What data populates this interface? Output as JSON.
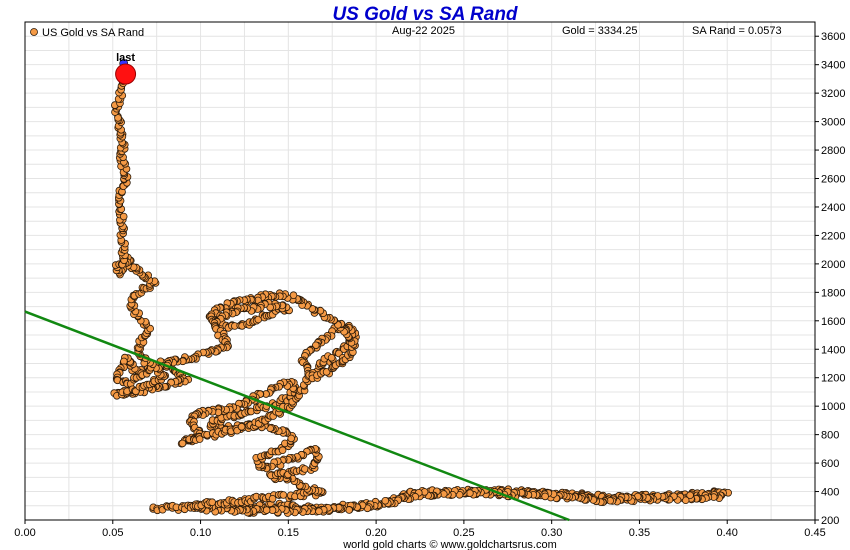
{
  "header": {
    "title": "US Gold vs SA Rand",
    "date": "Aug-22  2025",
    "gold_readout": "Gold = 3334.25",
    "rand_readout": "SA Rand = 0.0573"
  },
  "legend": {
    "label": "US Gold vs SA Rand",
    "position": "top-left"
  },
  "footer": {
    "credit": "world gold charts © www.goldchartsrus.com"
  },
  "colors": {
    "title": "#0000cc",
    "dots": "#f59a45",
    "dot_outline": "#2a1a0a",
    "trend": "#118811",
    "last": "#ff1111",
    "prev": "#3333ff"
  },
  "chart_data": {
    "type": "scatter",
    "title": "US Gold vs SA Rand",
    "xlabel": "",
    "ylabel": "",
    "xlim": [
      0.0,
      0.45
    ],
    "ylim": [
      200,
      3700
    ],
    "x_ticks": [
      "0.00",
      "0.05",
      "0.10",
      "0.15",
      "0.20",
      "0.25",
      "0.30",
      "0.35",
      "0.40",
      "0.45"
    ],
    "x_tick_values": [
      0.0,
      0.05,
      0.1,
      0.15,
      0.2,
      0.25,
      0.3,
      0.35,
      0.4,
      0.45
    ],
    "y_ticks": [
      "200",
      "400",
      "600",
      "800",
      "1000",
      "1200",
      "1400",
      "1600",
      "1800",
      "2000",
      "2200",
      "2400",
      "2600",
      "2800",
      "3000",
      "3200",
      "3400",
      "3600"
    ],
    "y_tick_values": [
      200,
      400,
      600,
      800,
      1000,
      1200,
      1400,
      1600,
      1800,
      2000,
      2200,
      2400,
      2600,
      2800,
      3000,
      3200,
      3400,
      3600
    ],
    "y_axis_side": "right",
    "grid": true,
    "series": [
      {
        "name": "US Gold vs SA Rand",
        "path": [
          [
            0.073,
            280
          ],
          [
            0.085,
            285
          ],
          [
            0.1,
            300
          ],
          [
            0.115,
            305
          ],
          [
            0.13,
            290
          ],
          [
            0.145,
            300
          ],
          [
            0.16,
            280
          ],
          [
            0.175,
            290
          ],
          [
            0.19,
            300
          ],
          [
            0.205,
            310
          ],
          [
            0.215,
            360
          ],
          [
            0.22,
            390
          ],
          [
            0.235,
            400
          ],
          [
            0.25,
            400
          ],
          [
            0.265,
            395
          ],
          [
            0.275,
            400
          ],
          [
            0.29,
            390
          ],
          [
            0.305,
            385
          ],
          [
            0.32,
            370
          ],
          [
            0.335,
            355
          ],
          [
            0.35,
            360
          ],
          [
            0.365,
            365
          ],
          [
            0.38,
            375
          ],
          [
            0.39,
            390
          ],
          [
            0.4,
            380
          ],
          [
            0.39,
            360
          ],
          [
            0.37,
            355
          ],
          [
            0.355,
            350
          ],
          [
            0.34,
            345
          ],
          [
            0.325,
            340
          ],
          [
            0.31,
            360
          ],
          [
            0.295,
            375
          ],
          [
            0.28,
            380
          ],
          [
            0.26,
            395
          ],
          [
            0.245,
            390
          ],
          [
            0.225,
            380
          ],
          [
            0.21,
            330
          ],
          [
            0.195,
            300
          ],
          [
            0.18,
            275
          ],
          [
            0.165,
            270
          ],
          [
            0.15,
            260
          ],
          [
            0.135,
            262
          ],
          [
            0.12,
            265
          ],
          [
            0.105,
            275
          ],
          [
            0.095,
            300
          ],
          [
            0.11,
            320
          ],
          [
            0.125,
            335
          ],
          [
            0.14,
            360
          ],
          [
            0.155,
            375
          ],
          [
            0.17,
            390
          ],
          [
            0.16,
            430
          ],
          [
            0.15,
            480
          ],
          [
            0.14,
            510
          ],
          [
            0.152,
            540
          ],
          [
            0.163,
            560
          ],
          [
            0.167,
            620
          ],
          [
            0.165,
            700
          ],
          [
            0.155,
            640
          ],
          [
            0.145,
            600
          ],
          [
            0.135,
            570
          ],
          [
            0.132,
            620
          ],
          [
            0.14,
            660
          ],
          [
            0.148,
            700
          ],
          [
            0.152,
            770
          ],
          [
            0.148,
            820
          ],
          [
            0.14,
            850
          ],
          [
            0.13,
            870
          ],
          [
            0.12,
            850
          ],
          [
            0.11,
            840
          ],
          [
            0.105,
            870
          ],
          [
            0.112,
            910
          ],
          [
            0.122,
            950
          ],
          [
            0.132,
            985
          ],
          [
            0.142,
            1010
          ],
          [
            0.15,
            1060
          ],
          [
            0.155,
            1120
          ],
          [
            0.152,
            1160
          ],
          [
            0.145,
            1150
          ],
          [
            0.137,
            1100
          ],
          [
            0.128,
            1030
          ],
          [
            0.118,
            990
          ],
          [
            0.108,
            960
          ],
          [
            0.098,
            950
          ],
          [
            0.093,
            900
          ],
          [
            0.098,
            850
          ],
          [
            0.1,
            800
          ],
          [
            0.095,
            760
          ],
          [
            0.09,
            740
          ],
          [
            0.096,
            770
          ],
          [
            0.108,
            800
          ],
          [
            0.12,
            830
          ],
          [
            0.133,
            880
          ],
          [
            0.143,
            950
          ],
          [
            0.152,
            1020
          ],
          [
            0.158,
            1120
          ],
          [
            0.163,
            1220
          ],
          [
            0.17,
            1300
          ],
          [
            0.178,
            1380
          ],
          [
            0.185,
            1430
          ],
          [
            0.188,
            1500
          ],
          [
            0.185,
            1560
          ],
          [
            0.178,
            1540
          ],
          [
            0.17,
            1470
          ],
          [
            0.163,
            1400
          ],
          [
            0.158,
            1330
          ],
          [
            0.16,
            1260
          ],
          [
            0.165,
            1210
          ],
          [
            0.172,
            1240
          ],
          [
            0.178,
            1290
          ],
          [
            0.184,
            1350
          ],
          [
            0.188,
            1420
          ],
          [
            0.185,
            1500
          ],
          [
            0.178,
            1580
          ],
          [
            0.17,
            1640
          ],
          [
            0.162,
            1700
          ],
          [
            0.155,
            1760
          ],
          [
            0.145,
            1780
          ],
          [
            0.135,
            1770
          ],
          [
            0.125,
            1740
          ],
          [
            0.115,
            1710
          ],
          [
            0.108,
            1680
          ],
          [
            0.105,
            1620
          ],
          [
            0.11,
            1580
          ],
          [
            0.118,
            1560
          ],
          [
            0.126,
            1580
          ],
          [
            0.134,
            1620
          ],
          [
            0.142,
            1660
          ],
          [
            0.15,
            1690
          ],
          [
            0.14,
            1710
          ],
          [
            0.13,
            1690
          ],
          [
            0.12,
            1670
          ],
          [
            0.112,
            1640
          ],
          [
            0.108,
            1560
          ],
          [
            0.112,
            1500
          ],
          [
            0.116,
            1440
          ],
          [
            0.11,
            1400
          ],
          [
            0.102,
            1370
          ],
          [
            0.095,
            1340
          ],
          [
            0.088,
            1320
          ],
          [
            0.081,
            1300
          ],
          [
            0.075,
            1280
          ],
          [
            0.07,
            1260
          ],
          [
            0.066,
            1240
          ],
          [
            0.062,
            1260
          ],
          [
            0.06,
            1300
          ],
          [
            0.058,
            1340
          ],
          [
            0.056,
            1300
          ],
          [
            0.054,
            1250
          ],
          [
            0.052,
            1200
          ],
          [
            0.058,
            1160
          ],
          [
            0.064,
            1200
          ],
          [
            0.07,
            1250
          ],
          [
            0.076,
            1300
          ],
          [
            0.082,
            1280
          ],
          [
            0.088,
            1230
          ],
          [
            0.092,
            1190
          ],
          [
            0.086,
            1160
          ],
          [
            0.078,
            1140
          ],
          [
            0.07,
            1120
          ],
          [
            0.062,
            1100
          ],
          [
            0.057,
            1090
          ],
          [
            0.052,
            1080
          ],
          [
            0.058,
            1100
          ],
          [
            0.066,
            1130
          ],
          [
            0.074,
            1170
          ],
          [
            0.08,
            1210
          ],
          [
            0.076,
            1260
          ],
          [
            0.07,
            1310
          ],
          [
            0.066,
            1360
          ],
          [
            0.064,
            1420
          ],
          [
            0.068,
            1480
          ],
          [
            0.07,
            1540
          ],
          [
            0.068,
            1590
          ],
          [
            0.064,
            1640
          ],
          [
            0.061,
            1700
          ],
          [
            0.06,
            1760
          ],
          [
            0.064,
            1800
          ],
          [
            0.07,
            1840
          ],
          [
            0.074,
            1870
          ],
          [
            0.072,
            1900
          ],
          [
            0.068,
            1920
          ],
          [
            0.064,
            1950
          ],
          [
            0.062,
            1980
          ],
          [
            0.06,
            2000
          ],
          [
            0.058,
            2040
          ],
          [
            0.056,
            1980
          ],
          [
            0.054,
            1940
          ],
          [
            0.052,
            1960
          ],
          [
            0.054,
            2000
          ],
          [
            0.056,
            2060
          ],
          [
            0.056,
            2150
          ],
          [
            0.055,
            2250
          ],
          [
            0.055,
            2350
          ],
          [
            0.054,
            2420
          ],
          [
            0.055,
            2500
          ],
          [
            0.057,
            2560
          ],
          [
            0.058,
            2620
          ],
          [
            0.056,
            2680
          ],
          [
            0.055,
            2740
          ],
          [
            0.056,
            2800
          ],
          [
            0.055,
            2880
          ],
          [
            0.054,
            2960
          ],
          [
            0.053,
            3040
          ],
          [
            0.052,
            3100
          ],
          [
            0.053,
            3160
          ],
          [
            0.055,
            3220
          ],
          [
            0.056,
            3280
          ],
          [
            0.057,
            3320
          ],
          [
            0.0573,
            3334
          ]
        ]
      }
    ],
    "trend_line": {
      "x": [
        0.0,
        0.31
      ],
      "y": [
        1665,
        200
      ]
    },
    "last_point": {
      "label": "last",
      "x": 0.0573,
      "y": 3334.25
    },
    "previous_point": {
      "x": 0.0562,
      "y": 3410
    }
  }
}
